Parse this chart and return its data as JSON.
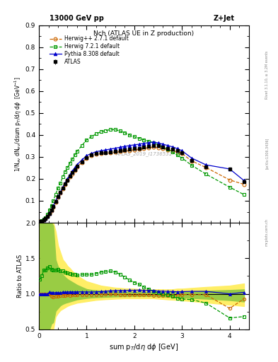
{
  "title": "Nch (ATLAS UE in Z production)",
  "top_left_label": "13000 GeV pp",
  "top_right_label": "Z+Jet",
  "right_label1": "Rivet 3.1.10, ≥ 3.2M events",
  "right_label2": "[arXiv:1306.3436]",
  "right_label3": "mcplots.cern.ch",
  "watermark": "ATLAS_2019_I1736531",
  "xlabel": "sum p$_T$/d$\\eta$ d$\\phi$ [GeV]",
  "ylabel": "1/N$_{ev}$ dN$_{ev}$/dsum p$_T$/d$\\eta$ d$\\phi$  [GeV$^{-1}$]",
  "ylabel_ratio": "Ratio to ATLAS",
  "xlim": [
    0,
    4.4
  ],
  "ylim_main": [
    0,
    0.9
  ],
  "ylim_ratio": [
    0.5,
    2.0
  ],
  "yticks_main": [
    0.1,
    0.2,
    0.3,
    0.4,
    0.5,
    0.6,
    0.7,
    0.8,
    0.9
  ],
  "yticks_ratio": [
    0.5,
    1.0,
    1.5,
    2.0
  ],
  "xticks_main": [
    0,
    1,
    2,
    3,
    4
  ],
  "atlas_x": [
    0.02,
    0.06,
    0.1,
    0.14,
    0.18,
    0.22,
    0.26,
    0.3,
    0.35,
    0.4,
    0.45,
    0.5,
    0.55,
    0.6,
    0.65,
    0.7,
    0.75,
    0.8,
    0.9,
    1.0,
    1.1,
    1.2,
    1.3,
    1.4,
    1.5,
    1.6,
    1.7,
    1.8,
    1.9,
    2.0,
    2.1,
    2.2,
    2.3,
    2.4,
    2.5,
    2.6,
    2.7,
    2.8,
    2.9,
    3.0,
    3.2,
    3.5,
    4.0,
    4.3
  ],
  "atlas_y": [
    0.005,
    0.008,
    0.012,
    0.018,
    0.028,
    0.042,
    0.058,
    0.075,
    0.098,
    0.118,
    0.138,
    0.158,
    0.178,
    0.195,
    0.212,
    0.228,
    0.243,
    0.258,
    0.278,
    0.298,
    0.308,
    0.315,
    0.318,
    0.32,
    0.322,
    0.325,
    0.328,
    0.332,
    0.335,
    0.338,
    0.34,
    0.345,
    0.348,
    0.352,
    0.35,
    0.345,
    0.34,
    0.335,
    0.328,
    0.318,
    0.285,
    0.255,
    0.245,
    0.188
  ],
  "atlas_yerr": [
    0.001,
    0.001,
    0.001,
    0.001,
    0.002,
    0.002,
    0.003,
    0.003,
    0.003,
    0.004,
    0.004,
    0.004,
    0.005,
    0.005,
    0.005,
    0.005,
    0.005,
    0.006,
    0.006,
    0.006,
    0.006,
    0.006,
    0.006,
    0.006,
    0.006,
    0.006,
    0.006,
    0.006,
    0.007,
    0.007,
    0.007,
    0.007,
    0.007,
    0.007,
    0.007,
    0.007,
    0.007,
    0.007,
    0.007,
    0.007,
    0.007,
    0.007,
    0.008,
    0.008
  ],
  "herwigpp_x": [
    0.02,
    0.06,
    0.1,
    0.14,
    0.18,
    0.22,
    0.26,
    0.3,
    0.35,
    0.4,
    0.45,
    0.5,
    0.55,
    0.6,
    0.65,
    0.7,
    0.75,
    0.8,
    0.9,
    1.0,
    1.1,
    1.2,
    1.3,
    1.4,
    1.5,
    1.6,
    1.7,
    1.8,
    1.9,
    2.0,
    2.1,
    2.2,
    2.3,
    2.4,
    2.5,
    2.6,
    2.7,
    2.8,
    2.9,
    3.0,
    3.2,
    3.5,
    4.0,
    4.3
  ],
  "herwigpp_y": [
    0.005,
    0.008,
    0.012,
    0.018,
    0.028,
    0.042,
    0.056,
    0.072,
    0.095,
    0.115,
    0.135,
    0.155,
    0.175,
    0.192,
    0.208,
    0.224,
    0.24,
    0.255,
    0.275,
    0.295,
    0.305,
    0.312,
    0.315,
    0.318,
    0.32,
    0.322,
    0.325,
    0.328,
    0.33,
    0.332,
    0.335,
    0.34,
    0.342,
    0.345,
    0.342,
    0.338,
    0.333,
    0.328,
    0.322,
    0.315,
    0.282,
    0.252,
    0.195,
    0.175
  ],
  "herwig72_x": [
    0.02,
    0.06,
    0.1,
    0.14,
    0.18,
    0.22,
    0.26,
    0.3,
    0.35,
    0.4,
    0.45,
    0.5,
    0.55,
    0.6,
    0.65,
    0.7,
    0.75,
    0.8,
    0.9,
    1.0,
    1.1,
    1.2,
    1.3,
    1.4,
    1.5,
    1.6,
    1.7,
    1.8,
    1.9,
    2.0,
    2.1,
    2.2,
    2.3,
    2.4,
    2.5,
    2.6,
    2.7,
    2.8,
    2.9,
    3.0,
    3.2,
    3.5,
    4.0,
    4.3
  ],
  "herwig72_y": [
    0.006,
    0.01,
    0.016,
    0.024,
    0.038,
    0.058,
    0.078,
    0.1,
    0.13,
    0.158,
    0.182,
    0.208,
    0.232,
    0.252,
    0.272,
    0.29,
    0.308,
    0.326,
    0.352,
    0.378,
    0.392,
    0.405,
    0.415,
    0.42,
    0.425,
    0.425,
    0.418,
    0.41,
    0.4,
    0.392,
    0.385,
    0.378,
    0.372,
    0.365,
    0.355,
    0.345,
    0.335,
    0.322,
    0.308,
    0.295,
    0.262,
    0.222,
    0.162,
    0.128
  ],
  "pythia_x": [
    0.02,
    0.06,
    0.1,
    0.14,
    0.18,
    0.22,
    0.26,
    0.3,
    0.35,
    0.4,
    0.45,
    0.5,
    0.55,
    0.6,
    0.65,
    0.7,
    0.75,
    0.8,
    0.9,
    1.0,
    1.1,
    1.2,
    1.3,
    1.4,
    1.5,
    1.6,
    1.7,
    1.8,
    1.9,
    2.0,
    2.1,
    2.2,
    2.3,
    2.4,
    2.5,
    2.6,
    2.7,
    2.8,
    2.9,
    3.0,
    3.2,
    3.5,
    4.0,
    4.3
  ],
  "pythia_y": [
    0.005,
    0.008,
    0.012,
    0.018,
    0.028,
    0.043,
    0.059,
    0.076,
    0.1,
    0.12,
    0.14,
    0.162,
    0.182,
    0.2,
    0.218,
    0.234,
    0.25,
    0.265,
    0.286,
    0.306,
    0.316,
    0.324,
    0.328,
    0.332,
    0.336,
    0.34,
    0.344,
    0.348,
    0.352,
    0.355,
    0.358,
    0.362,
    0.365,
    0.368,
    0.364,
    0.358,
    0.352,
    0.346,
    0.338,
    0.328,
    0.295,
    0.264,
    0.245,
    0.192
  ],
  "atlas_color": "#000000",
  "herwigpp_color": "#cc6600",
  "herwig72_color": "#009900",
  "pythia_color": "#0000cc",
  "band_yellow": "#ffee66",
  "band_green": "#99cc44",
  "ratio_herwigpp_y": [
    1.0,
    1.0,
    1.0,
    1.0,
    1.0,
    1.0,
    0.97,
    0.96,
    0.97,
    0.97,
    0.98,
    0.98,
    0.98,
    0.985,
    0.98,
    0.982,
    0.988,
    0.988,
    0.989,
    0.99,
    0.99,
    0.991,
    0.991,
    0.994,
    0.994,
    0.992,
    0.991,
    0.988,
    0.985,
    0.982,
    0.985,
    0.985,
    0.983,
    0.98,
    0.977,
    0.978,
    0.979,
    0.98,
    0.981,
    0.99,
    0.99,
    0.988,
    0.796,
    0.931
  ],
  "ratio_herwig72_y": [
    1.2,
    1.25,
    1.33,
    1.33,
    1.36,
    1.38,
    1.34,
    1.33,
    1.33,
    1.34,
    1.32,
    1.32,
    1.3,
    1.29,
    1.28,
    1.27,
    1.27,
    1.26,
    1.27,
    1.27,
    1.27,
    1.285,
    1.305,
    1.31,
    1.32,
    1.308,
    1.274,
    1.235,
    1.194,
    1.16,
    1.132,
    1.095,
    1.069,
    1.037,
    1.014,
    1.0,
    0.985,
    0.962,
    0.939,
    0.927,
    0.919,
    0.871,
    0.661,
    0.681
  ],
  "ratio_pythia_y": [
    1.0,
    1.0,
    1.0,
    1.0,
    1.0,
    1.024,
    1.017,
    1.013,
    1.02,
    1.017,
    1.014,
    1.025,
    1.022,
    1.026,
    1.028,
    1.026,
    1.029,
    1.027,
    1.029,
    1.027,
    1.026,
    1.029,
    1.031,
    1.038,
    1.043,
    1.046,
    1.049,
    1.048,
    1.051,
    1.05,
    1.053,
    1.049,
    1.049,
    1.045,
    1.04,
    1.038,
    1.035,
    1.033,
    1.03,
    1.031,
    1.035,
    1.035,
    1.0,
    1.021
  ],
  "yellow_band_low": [
    0.5,
    0.5,
    0.5,
    0.5,
    0.5,
    0.5,
    0.5,
    0.5,
    0.68,
    0.73,
    0.77,
    0.79,
    0.81,
    0.83,
    0.845,
    0.855,
    0.865,
    0.875,
    0.885,
    0.895,
    0.905,
    0.915,
    0.92,
    0.925,
    0.928,
    0.932,
    0.935,
    0.938,
    0.938,
    0.938,
    0.938,
    0.938,
    0.938,
    0.938,
    0.932,
    0.928,
    0.922,
    0.918,
    0.915,
    0.908,
    0.898,
    0.878,
    0.848,
    0.828
  ],
  "yellow_band_high": [
    2.0,
    2.0,
    2.0,
    2.0,
    2.0,
    2.0,
    2.0,
    2.0,
    1.88,
    1.68,
    1.58,
    1.48,
    1.44,
    1.39,
    1.36,
    1.32,
    1.29,
    1.26,
    1.215,
    1.175,
    1.155,
    1.135,
    1.115,
    1.105,
    1.096,
    1.086,
    1.082,
    1.075,
    1.074,
    1.072,
    1.066,
    1.063,
    1.062,
    1.061,
    1.064,
    1.062,
    1.062,
    1.063,
    1.072,
    1.072,
    1.082,
    1.096,
    1.115,
    1.145
  ],
  "green_band_low": [
    0.5,
    0.5,
    0.5,
    0.5,
    0.5,
    0.5,
    0.58,
    0.6,
    0.76,
    0.8,
    0.838,
    0.858,
    0.872,
    0.882,
    0.892,
    0.902,
    0.912,
    0.922,
    0.932,
    0.942,
    0.948,
    0.952,
    0.955,
    0.958,
    0.96,
    0.963,
    0.965,
    0.966,
    0.967,
    0.968,
    0.968,
    0.968,
    0.968,
    0.967,
    0.963,
    0.962,
    0.958,
    0.955,
    0.952,
    0.948,
    0.942,
    0.932,
    0.912,
    0.892
  ],
  "green_band_high": [
    2.0,
    2.0,
    2.0,
    2.0,
    2.0,
    2.0,
    2.0,
    1.96,
    1.48,
    1.38,
    1.33,
    1.27,
    1.235,
    1.205,
    1.185,
    1.165,
    1.145,
    1.125,
    1.095,
    1.066,
    1.055,
    1.049,
    1.044,
    1.04,
    1.038,
    1.036,
    1.033,
    1.031,
    1.03,
    1.029,
    1.028,
    1.027,
    1.027,
    1.026,
    1.026,
    1.026,
    1.026,
    1.026,
    1.027,
    1.028,
    1.032,
    1.042,
    1.053,
    1.062
  ]
}
